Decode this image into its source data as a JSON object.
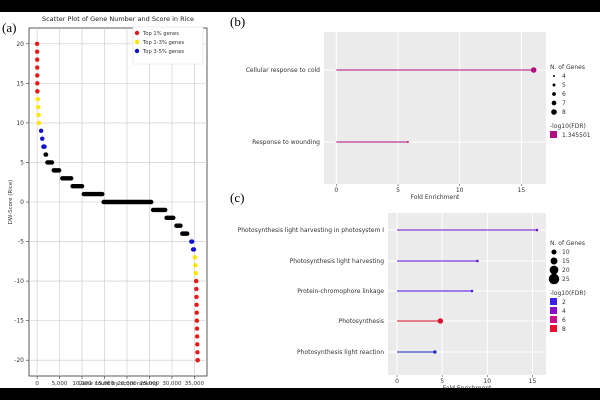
{
  "panels": {
    "a": "(a)",
    "b": "(b)",
    "c": "(c)"
  },
  "chart_data": [
    {
      "type": "scatter",
      "title": "Scatter Plot of Gene Number and Score in Rice",
      "xlabel": "Gene count by score ranking",
      "ylabel": "DW-Score (Rice)",
      "xlim": [
        -1800,
        37800
      ],
      "ylim": [
        -22,
        22
      ],
      "xticks": [
        0,
        5000,
        10000,
        15000,
        20000,
        25000,
        30000,
        35000
      ],
      "xtick_labels": [
        "0",
        "5,000",
        "10,000",
        "15,000",
        "20,000",
        "25,000",
        "30,000",
        "35,000"
      ],
      "yticks": [
        20,
        15,
        10,
        5,
        0,
        -5,
        -10,
        -15,
        -20
      ],
      "grid": true,
      "legend_position": "top-right",
      "colors": {
        "top1": "#e41a1c",
        "top3": "#ffe600",
        "top5": "#1010d0",
        "rest": "#000000"
      },
      "legend": [
        {
          "label": "Top 1% genes",
          "color": "#e41a1c"
        },
        {
          "label": "Top 1-3% genes",
          "color": "#ffe600"
        },
        {
          "label": "Top 3-5% genes",
          "color": "#1010d0"
        }
      ],
      "series": [
        {
          "name": "Top 1% genes",
          "color": "#e41a1c",
          "x": [
            0,
            10,
            20,
            30,
            40,
            50,
            60,
            70,
            35400,
            35430,
            35460,
            35490,
            35520,
            35550,
            35580,
            35610,
            35640,
            35670,
            35700,
            35730
          ],
          "y": [
            20,
            19,
            18,
            17,
            16,
            15,
            14,
            14,
            -10,
            -11,
            -12,
            -13,
            -14,
            -15,
            -16,
            -17,
            -18,
            -19,
            -20,
            -20
          ]
        },
        {
          "name": "Top 1-3% genes",
          "color": "#ffe600",
          "x": [
            150,
            250,
            350,
            450,
            35100,
            35200,
            35300
          ],
          "y": [
            13,
            12,
            11,
            10,
            -7,
            -8,
            -9
          ]
        },
        {
          "name": "Top 3-5% genes",
          "color": "#1010d0",
          "x": [
            900,
            1150,
            1400,
            1650,
            34300,
            34500,
            34700,
            34900
          ],
          "y": [
            9,
            8,
            7,
            7,
            -5,
            -5,
            -6,
            -6
          ]
        },
        {
          "name": "",
          "color": "#000000",
          "segments": [
            {
              "x0": 1900,
              "x1": 2000,
              "y": 6
            },
            {
              "x0": 2300,
              "x1": 3300,
              "y": 5
            },
            {
              "x0": 3700,
              "x1": 4900,
              "y": 4
            },
            {
              "x0": 5600,
              "x1": 7600,
              "y": 3
            },
            {
              "x0": 7900,
              "x1": 10000,
              "y": 2
            },
            {
              "x0": 10400,
              "x1": 14500,
              "y": 1
            },
            {
              "x0": 14800,
              "x1": 25400,
              "y": 0
            },
            {
              "x0": 25800,
              "x1": 28500,
              "y": -1
            },
            {
              "x0": 28800,
              "x1": 30300,
              "y": -2
            },
            {
              "x0": 31000,
              "x1": 31900,
              "y": -3
            },
            {
              "x0": 32300,
              "x1": 33400,
              "y": -4
            }
          ]
        }
      ]
    },
    {
      "type": "lollipop",
      "xlabel": "Fold Enrichment",
      "xlim": [
        -1,
        17
      ],
      "xticks": [
        0,
        5,
        10,
        15
      ],
      "categories": [
        "Cellular response to cold",
        "Response to wounding"
      ],
      "values": [
        16,
        5.8
      ],
      "n_genes": [
        8,
        4
      ],
      "colors": [
        "#b0107e",
        "#b0107e"
      ],
      "legend_size_title": "N. of Genes",
      "legend_size_values": [
        4,
        5,
        6,
        7,
        8
      ],
      "legend_color_title": "-log10(FDR)",
      "legend_color_values": [
        {
          "label": "1.345501",
          "color": "#b0107e"
        }
      ]
    },
    {
      "type": "lollipop",
      "xlabel": "Fold Enrichment",
      "xlim": [
        -1,
        16.5
      ],
      "xticks": [
        0,
        5,
        10,
        15
      ],
      "categories": [
        "Photosynthesis light harvesting in photosystem I",
        "Photosynthesis light harvesting",
        "Protein-chromophore linkage",
        "Photosynthesis",
        "Photosynthesis light reaction"
      ],
      "values": [
        15.5,
        8.9,
        8.3,
        4.8,
        4.2
      ],
      "n_genes": [
        3,
        3,
        3,
        11,
        5
      ],
      "colors": [
        "#7010d0",
        "#6010e0",
        "#5010e0",
        "#e01030",
        "#2020c0"
      ],
      "legend_size_title": "N. of Genes",
      "legend_size_values": [
        10,
        15,
        20,
        25
      ],
      "legend_color_title": "-log10(FDR)",
      "legend_color_values": [
        {
          "label": "2",
          "color": "#3a20e8"
        },
        {
          "label": "4",
          "color": "#8a10c8"
        },
        {
          "label": "6",
          "color": "#c8108a"
        },
        {
          "label": "8",
          "color": "#e81030"
        }
      ]
    }
  ]
}
